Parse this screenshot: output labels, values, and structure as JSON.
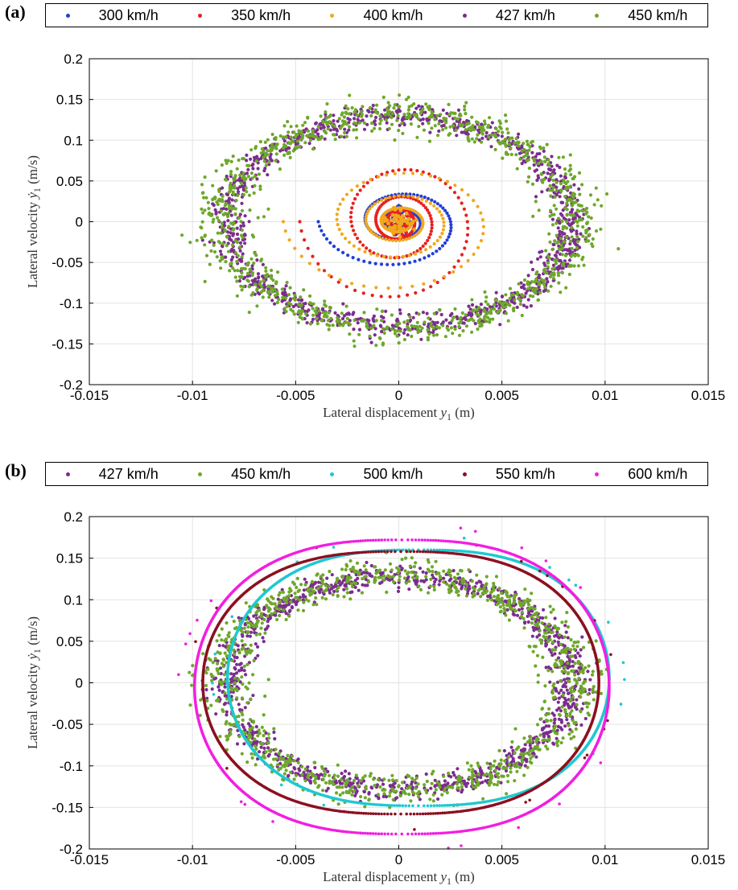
{
  "chart_data": [
    {
      "panel": "(a)",
      "type": "scatter",
      "title": "",
      "xlabel_text": "Lateral displacement ",
      "xlabel_var": "y",
      "xlabel_sub": "1",
      "xlabel_unit": " (m)",
      "ylabel_text": "Lateral velocity ",
      "ylabel_var": "ẏ",
      "ylabel_sub": "1",
      "ylabel_unit": " (m/s)",
      "xlim": [
        -0.015,
        0.015
      ],
      "ylim": [
        -0.2,
        0.2
      ],
      "xticks": [
        "-0.015",
        "-0.01",
        "-0.005",
        "0",
        "0.005",
        "0.01",
        "0.015"
      ],
      "yticks": [
        "-0.2",
        "-0.15",
        "-0.1",
        "-0.05",
        "0",
        "0.05",
        "0.1",
        "0.15",
        "0.2"
      ],
      "grid": true,
      "legend_placement": "top, outside, horizontal",
      "series": [
        {
          "name": "300 km/h",
          "color": "#1f3fd6",
          "kind": "spiral",
          "x_amp": 0.0039,
          "y_amp": 0.065,
          "start_x": -0.0055,
          "turns": 2.5
        },
        {
          "name": "350 km/h",
          "color": "#e8201e",
          "kind": "spiral",
          "x_amp": 0.0048,
          "y_amp": 0.11,
          "start_x": -0.0075,
          "turns": 3
        },
        {
          "name": "400 km/h",
          "color": "#f0a81e",
          "kind": "spiral",
          "x_amp": 0.0056,
          "y_amp": 0.095,
          "start_x": 0.0,
          "turns": 3.5
        },
        {
          "name": "427 km/h",
          "color": "#7b2d8e",
          "kind": "limit-cycle",
          "x_amp": 0.0083,
          "y_amp": 0.128,
          "spread_x": 0.0009,
          "spread_y": 0.013
        },
        {
          "name": "450 km/h",
          "color": "#6ea82a",
          "kind": "limit-cycle",
          "x_amp": 0.0085,
          "y_amp": 0.13,
          "spread_x": 0.0014,
          "spread_y": 0.02
        }
      ]
    },
    {
      "panel": "(b)",
      "type": "scatter",
      "title": "",
      "xlabel_text": "Lateral displacement ",
      "xlabel_var": "y",
      "xlabel_sub": "1",
      "xlabel_unit": " (m)",
      "ylabel_text": "Lateral velocity ",
      "ylabel_var": "ẏ",
      "ylabel_sub": "1",
      "ylabel_unit": " (m/s)",
      "xlim": [
        -0.015,
        0.015
      ],
      "ylim": [
        -0.2,
        0.2
      ],
      "xticks": [
        "-0.015",
        "-0.01",
        "-0.005",
        "0",
        "0.005",
        "0.01",
        "0.015"
      ],
      "yticks": [
        "-0.2",
        "-0.15",
        "-0.1",
        "-0.05",
        "0",
        "0.05",
        "0.1",
        "0.15",
        "0.2"
      ],
      "grid": true,
      "legend_placement": "top, outside, horizontal",
      "series": [
        {
          "name": "427 km/h",
          "color": "#7b2d8e",
          "kind": "limit-cycle",
          "x_amp": 0.0083,
          "y_amp": 0.128,
          "spread_x": 0.0009,
          "spread_y": 0.013
        },
        {
          "name": "450 km/h",
          "color": "#6ea82a",
          "kind": "limit-cycle",
          "x_amp": 0.0085,
          "y_amp": 0.13,
          "spread_x": 0.0014,
          "spread_y": 0.02
        },
        {
          "name": "500 km/h",
          "color": "#1ec8d2",
          "kind": "orbit",
          "x_left": -0.0083,
          "x_right": 0.0102,
          "y_top": 0.16,
          "y_bottom": -0.148
        },
        {
          "name": "550 km/h",
          "color": "#8b1020",
          "kind": "orbit",
          "x_left": -0.0095,
          "x_right": 0.0097,
          "y_top": 0.158,
          "y_bottom": -0.158
        },
        {
          "name": "600 km/h",
          "color": "#f21ee0",
          "kind": "orbit",
          "x_left": -0.0099,
          "x_right": 0.0102,
          "y_top": 0.172,
          "y_bottom": -0.182
        }
      ]
    }
  ]
}
